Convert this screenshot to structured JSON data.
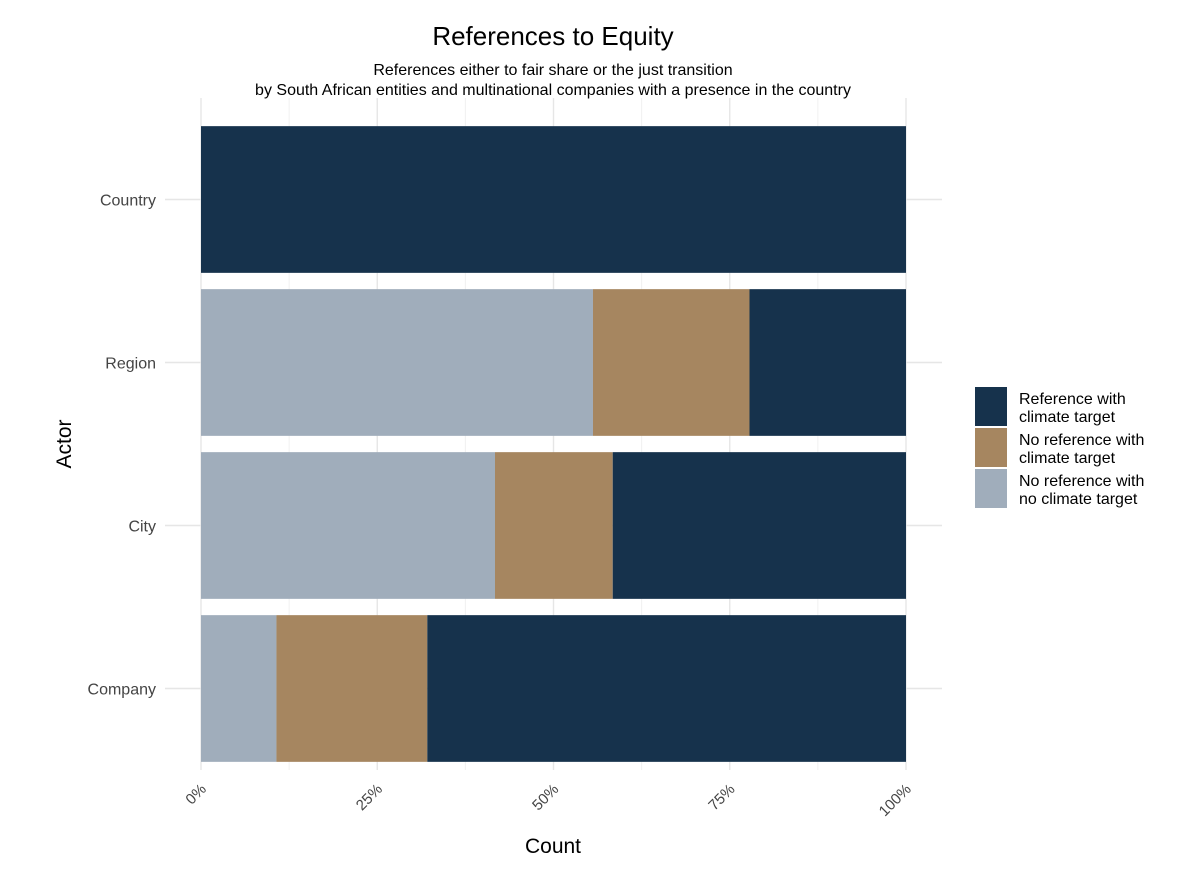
{
  "chart_data": {
    "type": "bar",
    "orientation": "horizontal",
    "stacked": "percent",
    "title": "References to Equity",
    "subtitle_lines": [
      "References either to fair share or the just transition",
      "by South African entities and multinational companies with a presence in the country"
    ],
    "xlabel": "Count",
    "ylabel": "Actor",
    "xlim": [
      0,
      100
    ],
    "x_ticks": [
      "0%",
      "25%",
      "50%",
      "75%",
      "100%"
    ],
    "categories": [
      "Country",
      "Region",
      "City",
      "Company"
    ],
    "series": [
      {
        "name": "No reference with no climate target",
        "legend_lines": [
          "No reference with",
          "no climate target"
        ],
        "color": "#a0adbb",
        "values": [
          0,
          55.6,
          41.7,
          10.7
        ]
      },
      {
        "name": "No reference with climate target",
        "legend_lines": [
          "No reference with",
          "climate target"
        ],
        "color": "#a68660",
        "values": [
          0,
          22.2,
          16.7,
          21.4
        ]
      },
      {
        "name": "Reference with climate target",
        "legend_lines": [
          "Reference with",
          "climate target"
        ],
        "color": "#16324c",
        "values": [
          100,
          22.2,
          41.6,
          67.9
        ]
      }
    ],
    "legend_order": [
      "Reference with climate target",
      "No reference with climate target",
      "No reference with no climate target"
    ],
    "legend_position": "right",
    "grid": true
  }
}
